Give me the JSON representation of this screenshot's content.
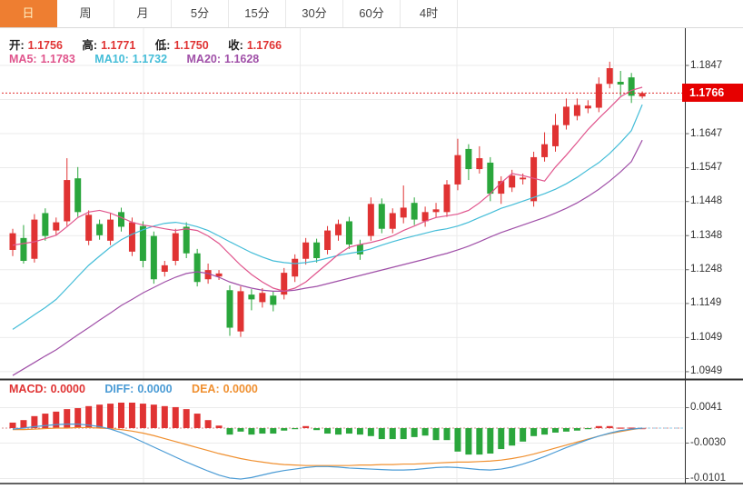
{
  "tabs": {
    "items": [
      {
        "label": "日",
        "active": true
      },
      {
        "label": "周",
        "active": false
      },
      {
        "label": "月",
        "active": false
      },
      {
        "label": "5分",
        "active": false
      },
      {
        "label": "15分",
        "active": false
      },
      {
        "label": "30分",
        "active": false
      },
      {
        "label": "60分",
        "active": false
      },
      {
        "label": "4时",
        "active": false
      }
    ]
  },
  "header": {
    "open_label": "开:",
    "open": "1.1756",
    "high_label": "高:",
    "high": "1.1771",
    "low_label": "低:",
    "low": "1.1750",
    "close_label": "收:",
    "close": "1.1766"
  },
  "ma_header": {
    "ma5_label": "MA5:",
    "ma5": "1.1783",
    "ma10_label": "MA10:",
    "ma10": "1.1732",
    "ma20_label": "MA20:",
    "ma20": "1.1628"
  },
  "macd_header": {
    "macd_label": "MACD:",
    "macd": "0.0000",
    "diff_label": "DIFF:",
    "diff": "0.0000",
    "dea_label": "DEA:",
    "dea": "0.0000"
  },
  "price_badge": "1.1766",
  "colors": {
    "up": "#e03333",
    "down": "#2aa63c",
    "tab_active": "#ee7e31",
    "badge_bg": "#e60000",
    "badge_text": "#ffffff",
    "current_price_line": "#e03030",
    "ma5": "#e0548c",
    "ma10": "#44bdd8",
    "ma20": "#a050a8",
    "diff": "#4a9bd5",
    "dea": "#f09030",
    "ohlc_value": "#e03333",
    "grid": "#ebebeb",
    "axis_text": "#333333",
    "border": "#2f2f2f"
  },
  "chart_data": {
    "type": "candlestick",
    "title": "EUR/USD daily candlestick chart with MA5/MA10/MA20 and MACD",
    "legend_position": "top-left",
    "grid": true,
    "last_price": 1.1766,
    "price_axis": {
      "ticks": [
        "1.1847",
        "1.1747",
        "1.1647",
        "1.1547",
        "1.1448",
        "1.1348",
        "1.1248",
        "1.1149",
        "1.1049",
        "1.0949"
      ],
      "ylim": [
        1.0922,
        1.1885
      ]
    },
    "macd_axis": {
      "ticks": [
        "0.0041",
        "-0.0030",
        "-0.0101"
      ],
      "ylim": [
        -0.0113,
        0.0084
      ]
    },
    "candles_format": [
      "open",
      "high",
      "low",
      "close"
    ],
    "candles": [
      [
        1.1306,
        1.1368,
        1.1288,
        1.1355
      ],
      [
        1.1341,
        1.1379,
        1.1266,
        1.1274
      ],
      [
        1.128,
        1.1411,
        1.1269,
        1.1395
      ],
      [
        1.1414,
        1.1428,
        1.1333,
        1.1347
      ],
      [
        1.1363,
        1.1401,
        1.1349,
        1.1387
      ],
      [
        1.139,
        1.1575,
        1.1376,
        1.1511
      ],
      [
        1.1516,
        1.1549,
        1.1403,
        1.1417
      ],
      [
        1.1333,
        1.1422,
        1.132,
        1.1409
      ],
      [
        1.1382,
        1.1395,
        1.1336,
        1.1349
      ],
      [
        1.1333,
        1.1414,
        1.132,
        1.1395
      ],
      [
        1.1417,
        1.143,
        1.136,
        1.1374
      ],
      [
        1.1301,
        1.1401,
        1.1288,
        1.1387
      ],
      [
        1.1376,
        1.139,
        1.1255,
        1.1274
      ],
      [
        1.1347,
        1.136,
        1.1207,
        1.122
      ],
      [
        1.1242,
        1.1274,
        1.1228,
        1.1261
      ],
      [
        1.1274,
        1.1368,
        1.1261,
        1.1355
      ],
      [
        1.1374,
        1.1387,
        1.1282,
        1.1296
      ],
      [
        1.1296,
        1.1309,
        1.1199,
        1.1212
      ],
      [
        1.122,
        1.1266,
        1.1207,
        1.1247
      ],
      [
        1.1228,
        1.1247,
        1.1218,
        1.1237
      ],
      [
        1.1188,
        1.1202,
        1.1054,
        1.1078
      ],
      [
        1.1067,
        1.1199,
        1.1051,
        1.1185
      ],
      [
        1.1175,
        1.1191,
        1.1129,
        1.1161
      ],
      [
        1.1153,
        1.1194,
        1.1137,
        1.118
      ],
      [
        1.1172,
        1.1185,
        1.1126,
        1.1145
      ],
      [
        1.1175,
        1.1253,
        1.1161,
        1.1239
      ],
      [
        1.1228,
        1.1293,
        1.1212,
        1.128
      ],
      [
        1.128,
        1.1341,
        1.1263,
        1.1328
      ],
      [
        1.1328,
        1.1339,
        1.1269,
        1.1282
      ],
      [
        1.1306,
        1.1376,
        1.1293,
        1.1363
      ],
      [
        1.1349,
        1.1395,
        1.1333,
        1.1382
      ],
      [
        1.139,
        1.1403,
        1.1309,
        1.1322
      ],
      [
        1.1322,
        1.1336,
        1.1277,
        1.1293
      ],
      [
        1.1347,
        1.146,
        1.1333,
        1.1441
      ],
      [
        1.1441,
        1.1457,
        1.1355,
        1.1368
      ],
      [
        1.1368,
        1.1428,
        1.1355,
        1.1414
      ],
      [
        1.1401,
        1.1495,
        1.1384,
        1.143
      ],
      [
        1.1444,
        1.146,
        1.1379,
        1.1395
      ],
      [
        1.139,
        1.1433,
        1.1374,
        1.1417
      ],
      [
        1.1417,
        1.1444,
        1.1401,
        1.1425
      ],
      [
        1.1417,
        1.1511,
        1.1403,
        1.1498
      ],
      [
        1.1498,
        1.1632,
        1.1481,
        1.1584
      ],
      [
        1.1602,
        1.1616,
        1.1511,
        1.1543
      ],
      [
        1.1543,
        1.161,
        1.153,
        1.1575
      ],
      [
        1.1562,
        1.1578,
        1.1449,
        1.1471
      ],
      [
        1.1471,
        1.1522,
        1.1441,
        1.1508
      ],
      [
        1.1489,
        1.1541,
        1.1476,
        1.1524
      ],
      [
        1.1513,
        1.153,
        1.1498,
        1.1518
      ],
      [
        1.1449,
        1.1594,
        1.1433,
        1.1578
      ],
      [
        1.1578,
        1.1651,
        1.1565,
        1.1616
      ],
      [
        1.161,
        1.1705,
        1.1594,
        1.1672
      ],
      [
        1.1672,
        1.175,
        1.1659,
        1.1726
      ],
      [
        1.1699,
        1.175,
        1.1686,
        1.1731
      ],
      [
        1.1721,
        1.1745,
        1.1707,
        1.1729
      ],
      [
        1.1723,
        1.1812,
        1.171,
        1.1793
      ],
      [
        1.1793,
        1.1858,
        1.178,
        1.1839
      ],
      [
        1.1799,
        1.1831,
        1.1758,
        1.1791
      ],
      [
        1.1812,
        1.1825,
        1.1737,
        1.1758
      ],
      [
        1.1756,
        1.1771,
        1.175,
        1.1766
      ]
    ],
    "ma5": [
      1.132,
      1.1325,
      1.133,
      1.1339,
      1.1349,
      1.1374,
      1.1401,
      1.1417,
      1.1422,
      1.1414,
      1.1401,
      1.1387,
      1.1379,
      1.1374,
      1.1368,
      1.1363,
      1.1368,
      1.1363,
      1.1347,
      1.1325,
      1.1293,
      1.1261,
      1.1234,
      1.1212,
      1.1194,
      1.1185,
      1.1194,
      1.1212,
      1.1239,
      1.1266,
      1.1293,
      1.1314,
      1.1322,
      1.1328,
      1.1336,
      1.1347,
      1.1363,
      1.1376,
      1.139,
      1.1401,
      1.1406,
      1.1411,
      1.1422,
      1.1444,
      1.1471,
      1.1503,
      1.153,
      1.1524,
      1.1516,
      1.1508,
      1.1549,
      1.1584,
      1.1621,
      1.1659,
      1.1692,
      1.1723,
      1.1755,
      1.1774,
      1.1783
    ],
    "ma10": [
      1.1073,
      1.1094,
      1.1116,
      1.1137,
      1.1161,
      1.1194,
      1.1228,
      1.1261,
      1.1288,
      1.1314,
      1.1336,
      1.1352,
      1.1365,
      1.1376,
      1.1384,
      1.1387,
      1.1382,
      1.1374,
      1.1363,
      1.1347,
      1.133,
      1.1314,
      1.1298,
      1.1285,
      1.1274,
      1.1269,
      1.1266,
      1.1269,
      1.1274,
      1.1282,
      1.129,
      1.1296,
      1.1301,
      1.1309,
      1.132,
      1.133,
      1.1339,
      1.1347,
      1.1355,
      1.1363,
      1.1368,
      1.1376,
      1.1387,
      1.1401,
      1.1414,
      1.1428,
      1.1438,
      1.1449,
      1.146,
      1.1471,
      1.1484,
      1.15,
      1.1519,
      1.1541,
      1.1562,
      1.1589,
      1.1621,
      1.1656,
      1.1732
    ],
    "ma20": [
      1.0938,
      1.0957,
      1.0976,
      1.0995,
      1.1013,
      1.1035,
      1.1057,
      1.1078,
      1.11,
      1.1121,
      1.1143,
      1.1161,
      1.118,
      1.1196,
      1.1212,
      1.1226,
      1.1237,
      1.1242,
      1.1237,
      1.1226,
      1.1212,
      1.1202,
      1.1194,
      1.1188,
      1.1185,
      1.1185,
      1.1188,
      1.1194,
      1.1199,
      1.1207,
      1.1215,
      1.1223,
      1.1231,
      1.1239,
      1.1247,
      1.1255,
      1.1263,
      1.1271,
      1.1279,
      1.1288,
      1.1296,
      1.1306,
      1.1317,
      1.133,
      1.1344,
      1.1357,
      1.1368,
      1.1379,
      1.139,
      1.1401,
      1.1414,
      1.1428,
      1.1444,
      1.1463,
      1.1484,
      1.1508,
      1.1535,
      1.1565,
      1.1628
    ],
    "macd": {
      "hist": [
        0.0011,
        0.0016,
        0.0024,
        0.0029,
        0.0033,
        0.0038,
        0.004,
        0.0044,
        0.0047,
        0.0049,
        0.0051,
        0.0051,
        0.0049,
        0.0047,
        0.0044,
        0.0042,
        0.0038,
        0.0029,
        0.0016,
        0.0005,
        -0.0013,
        -0.0007,
        -0.0013,
        -0.0011,
        -0.0011,
        -0.0005,
        -0.0002,
        0.0004,
        -0.0004,
        -0.0011,
        -0.0013,
        -0.0011,
        -0.0013,
        -0.0016,
        -0.0022,
        -0.0022,
        -0.0022,
        -0.0018,
        -0.0015,
        -0.0024,
        -0.0024,
        -0.0047,
        -0.0053,
        -0.0053,
        -0.0051,
        -0.0042,
        -0.0035,
        -0.0027,
        -0.0016,
        -0.0013,
        -0.0009,
        -0.0007,
        -0.0005,
        -0.0002,
        0.0004,
        0.0004,
        0.0001,
        0.0001,
        0.0
      ],
      "diff": [
        -0.0002,
        0.0,
        0.0003,
        0.0005,
        0.0007,
        0.0008,
        0.0008,
        0.0006,
        0.0003,
        -0.0002,
        -0.0009,
        -0.0018,
        -0.0028,
        -0.0038,
        -0.0048,
        -0.0058,
        -0.0068,
        -0.0077,
        -0.0086,
        -0.0094,
        -0.01,
        -0.0102,
        -0.0099,
        -0.0094,
        -0.0089,
        -0.0085,
        -0.0082,
        -0.0079,
        -0.0077,
        -0.0077,
        -0.0078,
        -0.008,
        -0.0081,
        -0.0082,
        -0.0083,
        -0.0084,
        -0.0084,
        -0.0083,
        -0.0081,
        -0.0079,
        -0.0078,
        -0.0079,
        -0.0081,
        -0.0083,
        -0.0084,
        -0.0082,
        -0.0078,
        -0.0072,
        -0.0065,
        -0.0057,
        -0.0048,
        -0.0039,
        -0.0031,
        -0.0023,
        -0.0016,
        -0.001,
        -0.0005,
        -0.0002,
        0.0
      ],
      "dea": [
        -0.0003,
        -0.0003,
        -0.0002,
        -0.0001,
        0.0,
        0.0,
        0.0001,
        0.0001,
        0.0,
        -0.0001,
        -0.0003,
        -0.0006,
        -0.001,
        -0.0015,
        -0.0021,
        -0.0027,
        -0.0033,
        -0.0039,
        -0.0045,
        -0.0051,
        -0.0056,
        -0.0061,
        -0.0065,
        -0.0068,
        -0.0071,
        -0.0073,
        -0.0074,
        -0.0075,
        -0.0075,
        -0.0075,
        -0.0075,
        -0.0075,
        -0.0074,
        -0.0074,
        -0.0073,
        -0.0073,
        -0.0072,
        -0.0072,
        -0.0071,
        -0.007,
        -0.0069,
        -0.0068,
        -0.0068,
        -0.0067,
        -0.0066,
        -0.0064,
        -0.0061,
        -0.0057,
        -0.0052,
        -0.0046,
        -0.004,
        -0.0034,
        -0.0028,
        -0.0022,
        -0.0016,
        -0.0011,
        -0.0007,
        -0.0003,
        0.0
      ]
    }
  }
}
